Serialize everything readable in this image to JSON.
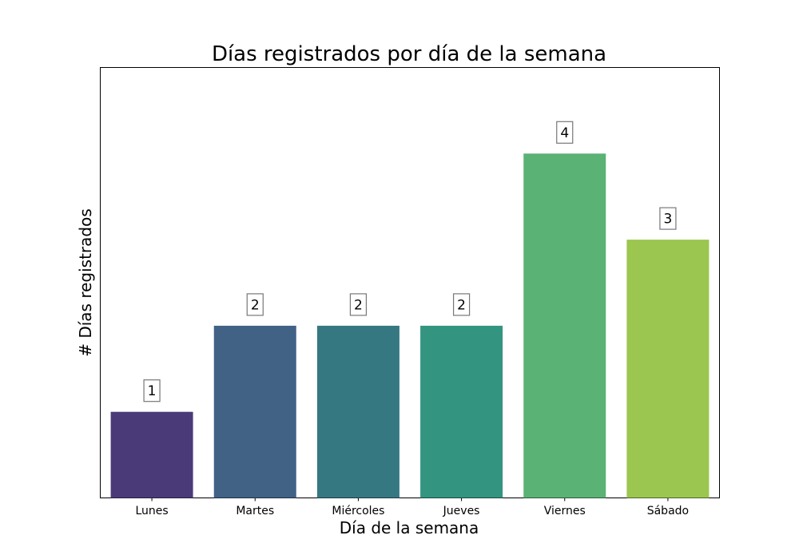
{
  "chart_data": {
    "type": "bar",
    "title": "Días registrados por día de la semana",
    "xlabel": "Día de la semana",
    "ylabel": "# Días registrados",
    "categories": [
      "Lunes",
      "Martes",
      "Miércoles",
      "Jueves",
      "Viernes",
      "Sábado"
    ],
    "values": [
      1,
      2,
      2,
      2,
      4,
      3
    ],
    "ylim": [
      0,
      5
    ],
    "grid": false,
    "y_tick_labels_visible": false,
    "colors": [
      "#4b3a78",
      "#416185",
      "#367882",
      "#339580",
      "#5ab274",
      "#9bc64f"
    ]
  }
}
